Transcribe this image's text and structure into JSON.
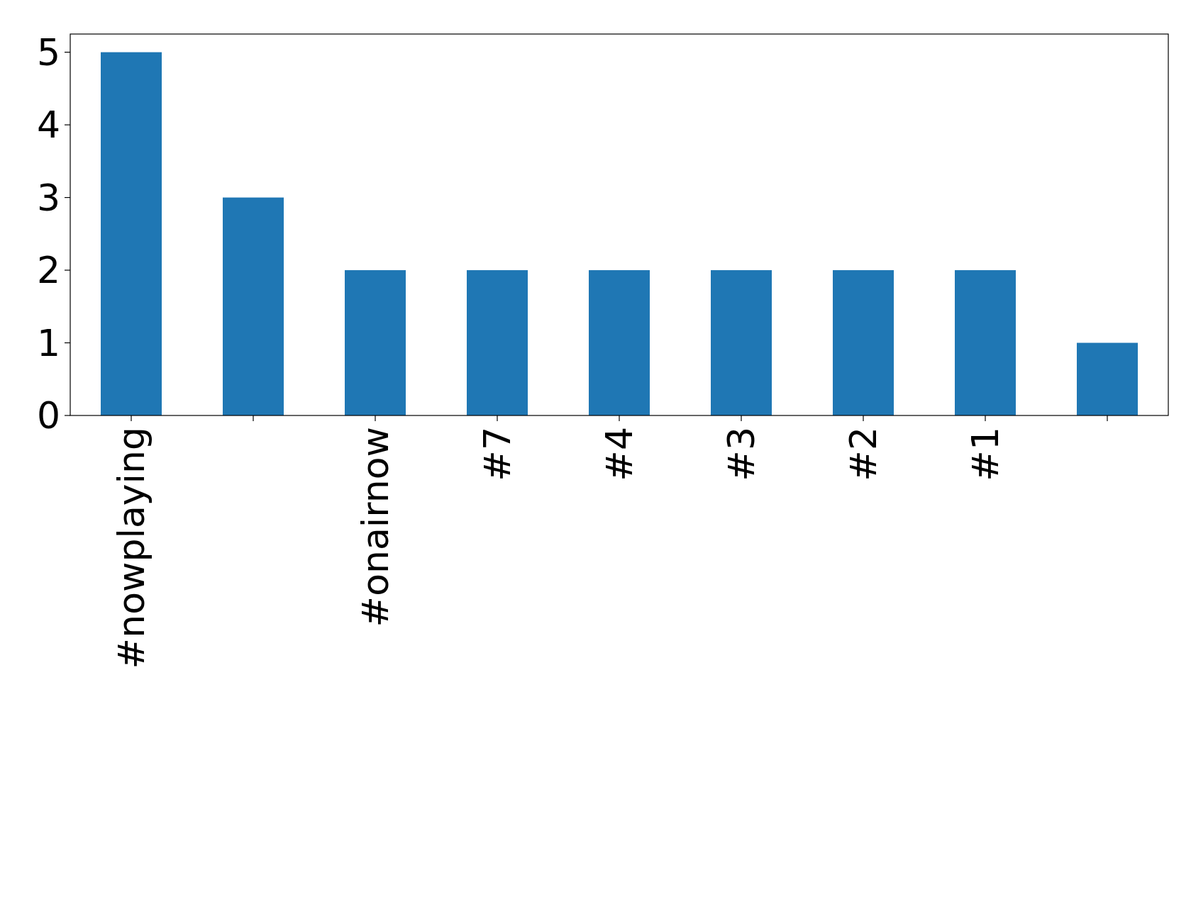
{
  "chart_data": {
    "type": "bar",
    "categories": [
      "#nowplaying",
      null,
      "#onairnow",
      "#7",
      "#4",
      "#3",
      "#2",
      "#1",
      null
    ],
    "values": [
      5,
      3,
      2,
      2,
      2,
      2,
      2,
      2,
      1
    ],
    "color": "#1f77b4",
    "ylim": [
      0,
      5.25
    ],
    "yticks": [
      0,
      1,
      2,
      3,
      4,
      5
    ],
    "grid": false
  }
}
